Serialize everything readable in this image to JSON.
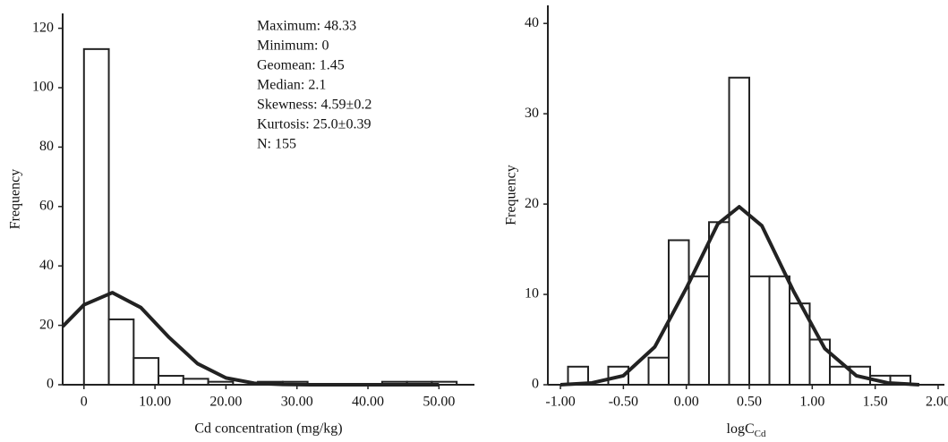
{
  "chart_data": [
    {
      "type": "histogram",
      "xlabel": "Cd concentration (mg/kg)",
      "ylabel": "Frequency",
      "annotations": [
        "Maximum: 48.33",
        "Minimum: 0",
        "Geomean: 1.45",
        "Median: 2.1",
        "Skewness: 4.59±0.2",
        "Kurtosis: 25.0±0.39",
        "N: 155"
      ],
      "bins": [
        0,
        3.5,
        7,
        10.5,
        14,
        17.5,
        21,
        24.5,
        28,
        31.5,
        35,
        38.5,
        42,
        45.5,
        49,
        52.5
      ],
      "values": [
        113,
        22,
        9,
        3,
        2,
        1,
        0,
        1,
        1,
        0,
        0,
        0,
        1,
        1,
        1
      ],
      "curve": {
        "x": [
          -3,
          0,
          4,
          8,
          12,
          16,
          20,
          24,
          28,
          32,
          40,
          50
        ],
        "values": [
          19.6,
          26.9,
          31,
          26.0,
          15.9,
          7.1,
          2.3,
          0.5,
          0.1,
          0,
          0,
          0
        ]
      },
      "xlim": [
        -3,
        55
      ],
      "ylim": [
        0,
        125
      ],
      "xticks": [
        0,
        {
          "value": 10,
          "label": "10.00"
        },
        {
          "value": 20,
          "label": "20.00"
        },
        {
          "value": 30,
          "label": "30.00"
        },
        {
          "value": 40,
          "label": "40.00"
        },
        {
          "value": 50,
          "label": "50.00"
        }
      ],
      "yticks": [
        0,
        20,
        40,
        60,
        80,
        100,
        120
      ],
      "bar_color": "#ffffff",
      "edge_color": "#222222",
      "line_color": "#222222"
    },
    {
      "type": "histogram",
      "xlabel": {
        "base": "logC",
        "subscript": "Cd"
      },
      "ylabel": "Frequency",
      "bins": [
        -0.94,
        -0.78,
        -0.62,
        -0.46,
        -0.3,
        -0.14,
        0.02,
        0.18,
        0.34,
        0.5,
        0.66,
        0.82,
        0.98,
        1.14,
        1.3,
        1.46,
        1.62,
        1.78
      ],
      "values": [
        2,
        0,
        2,
        0,
        3,
        16,
        12,
        18,
        34,
        12,
        12,
        9,
        5,
        2,
        2,
        1,
        1
      ],
      "curve": {
        "x": [
          -1,
          -0.75,
          -0.5,
          -0.25,
          0,
          0.25,
          0.42,
          0.6,
          0.85,
          1.1,
          1.35,
          1.6,
          1.85
        ],
        "values": [
          0,
          0.2,
          1.0,
          4.2,
          10.7,
          17.8,
          19.7,
          17.6,
          10.4,
          4.0,
          1.0,
          0.2,
          0
        ]
      },
      "xlim": [
        -1.1,
        2.05
      ],
      "ylim": [
        0,
        42
      ],
      "xticks": [
        {
          "value": -1,
          "label": "-1.00"
        },
        {
          "value": -0.5,
          "label": "-0.50"
        },
        {
          "value": 0,
          "label": "0.00"
        },
        {
          "value": 0.5,
          "label": "0.50"
        },
        {
          "value": 1,
          "label": "1.00"
        },
        {
          "value": 1.5,
          "label": "1.50"
        },
        {
          "value": 2,
          "label": "2.00"
        }
      ],
      "yticks": [
        0,
        10,
        20,
        30,
        40
      ],
      "bar_color": "#ffffff",
      "edge_color": "#222222",
      "line_color": "#222222"
    }
  ]
}
